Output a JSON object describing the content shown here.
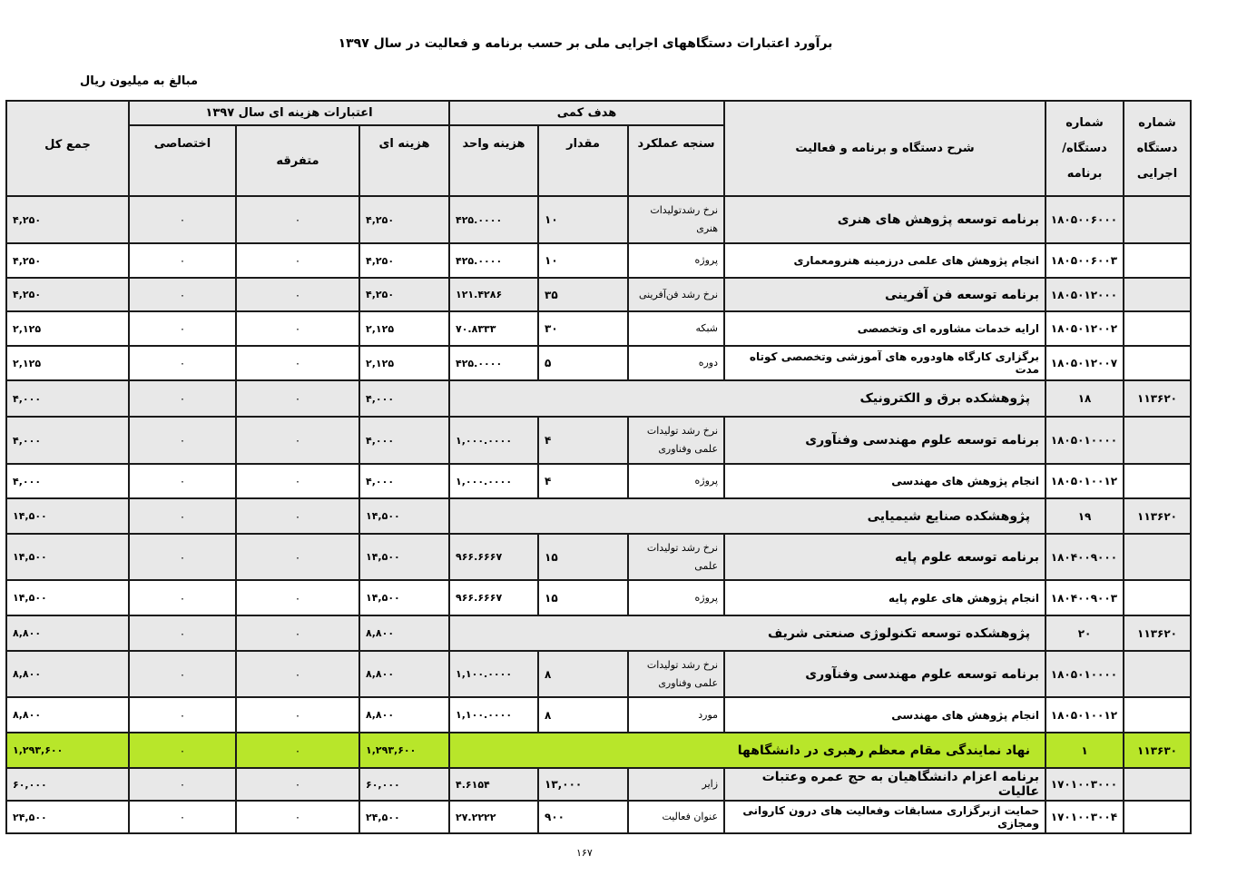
{
  "title": "برآورد اعتبارات دستگاههای اجرایی ملی بر حسب برنامه و فعالیت در سال ۱۳۹۷",
  "units": "مبالغ به میلیون ریال",
  "page_number": "۱۶۷",
  "highlight_color": "#b8e62a",
  "header": {
    "agency_no": "شماره دستگاه اجرایی",
    "program_no": "شماره دستگاه/ برنامه",
    "description": "شرح دستگاه و برنامه و فعالیت",
    "target_group": "هدف کمی",
    "measure": "سنجه عملکرد",
    "quantity": "مقدار",
    "unit_cost": "هزینه واحد",
    "credits_group": "اعتبارات هزینه ای سال ۱۳۹۷",
    "current": "هزینه ای",
    "misc": "متفرقه",
    "special": "اختصاصی",
    "total": "جمع کل"
  },
  "rows": [
    {
      "type": "program",
      "agency": "",
      "code": "۱۸۰۵۰۰۶۰۰۰",
      "desc": "برنامه توسعه پژوهش های هنری",
      "measure": "نرخ رشدتولیدات هنری",
      "qty": "۱۰",
      "unit_cost": "۴۲۵.۰۰۰۰",
      "current": "۴,۲۵۰",
      "misc": "۰",
      "special": "۰",
      "total": "۴,۲۵۰"
    },
    {
      "type": "activity",
      "agency": "",
      "code": "۱۸۰۵۰۰۶۰۰۳",
      "desc": "انجام پژوهش های علمی درزمینه هنرومعماری",
      "measure": "پروژه",
      "qty": "۱۰",
      "unit_cost": "۴۲۵.۰۰۰۰",
      "current": "۴,۲۵۰",
      "misc": "۰",
      "special": "۰",
      "total": "۴,۲۵۰"
    },
    {
      "type": "program",
      "agency": "",
      "code": "۱۸۰۵۰۱۲۰۰۰",
      "desc": "برنامه توسعه فن آفرینی",
      "measure": "نرخ رشد فن‌آفرینی",
      "qty": "۳۵",
      "unit_cost": "۱۲۱.۴۲۸۶",
      "current": "۴,۲۵۰",
      "misc": "۰",
      "special": "۰",
      "total": "۴,۲۵۰"
    },
    {
      "type": "activity",
      "agency": "",
      "code": "۱۸۰۵۰۱۲۰۰۲",
      "desc": "ارایه خدمات مشاوره ای وتخصصی",
      "measure": "شبکه",
      "qty": "۳۰",
      "unit_cost": "۷۰.۸۳۳۳",
      "current": "۲,۱۲۵",
      "misc": "۰",
      "special": "۰",
      "total": "۲,۱۲۵"
    },
    {
      "type": "activity",
      "agency": "",
      "code": "۱۸۰۵۰۱۲۰۰۷",
      "desc": "برگزاری کارگاه هاودوره های آموزشی وتخصصی کوتاه مدت",
      "measure": "دوره",
      "qty": "۵",
      "unit_cost": "۴۲۵.۰۰۰۰",
      "current": "۲,۱۲۵",
      "misc": "۰",
      "special": "۰",
      "total": "۲,۱۲۵"
    },
    {
      "type": "agency",
      "agency": "۱۱۳۶۲۰",
      "code": "۱۸",
      "desc": "پژوهشکده برق و الکترونیک",
      "current": "۴,۰۰۰",
      "misc": "۰",
      "special": "۰",
      "total": "۴,۰۰۰"
    },
    {
      "type": "program",
      "agency": "",
      "code": "۱۸۰۵۰۱۰۰۰۰",
      "desc": "برنامه توسعه علوم مهندسی وفنآوری",
      "measure": "نرخ رشد تولیدات علمی وفناوری",
      "qty": "۴",
      "unit_cost": "۱,۰۰۰.۰۰۰۰",
      "current": "۴,۰۰۰",
      "misc": "۰",
      "special": "۰",
      "total": "۴,۰۰۰"
    },
    {
      "type": "activity",
      "agency": "",
      "code": "۱۸۰۵۰۱۰۰۱۲",
      "desc": "انجام پژوهش های مهندسی",
      "measure": "پروژه",
      "qty": "۴",
      "unit_cost": "۱,۰۰۰.۰۰۰۰",
      "current": "۴,۰۰۰",
      "misc": "۰",
      "special": "۰",
      "total": "۴,۰۰۰"
    },
    {
      "type": "agency",
      "agency": "۱۱۳۶۲۰",
      "code": "۱۹",
      "desc": "پژوهشکده صنایع شیمیایی",
      "current": "۱۴,۵۰۰",
      "misc": "۰",
      "special": "۰",
      "total": "۱۴,۵۰۰"
    },
    {
      "type": "program",
      "agency": "",
      "code": "۱۸۰۴۰۰۹۰۰۰",
      "desc": "برنامه توسعه علوم پایه",
      "measure": "نرخ رشد  تولیدات علمی",
      "qty": "۱۵",
      "unit_cost": "۹۶۶.۶۶۶۷",
      "current": "۱۴,۵۰۰",
      "misc": "۰",
      "special": "۰",
      "total": "۱۴,۵۰۰"
    },
    {
      "type": "activity",
      "agency": "",
      "code": "۱۸۰۴۰۰۹۰۰۳",
      "desc": "انجام پژوهش های علوم پایه",
      "measure": "پروژه",
      "qty": "۱۵",
      "unit_cost": "۹۶۶.۶۶۶۷",
      "current": "۱۴,۵۰۰",
      "misc": "۰",
      "special": "۰",
      "total": "۱۴,۵۰۰"
    },
    {
      "type": "agency",
      "agency": "۱۱۳۶۲۰",
      "code": "۲۰",
      "desc": "پژوهشکده توسعه تکنولوژی صنعتی شریف",
      "current": "۸,۸۰۰",
      "misc": "۰",
      "special": "۰",
      "total": "۸,۸۰۰"
    },
    {
      "type": "program",
      "agency": "",
      "code": "۱۸۰۵۰۱۰۰۰۰",
      "desc": "برنامه توسعه علوم مهندسی وفنآوری",
      "measure": "نرخ رشد تولیدات علمی وفناوری",
      "qty": "۸",
      "unit_cost": "۱,۱۰۰.۰۰۰۰",
      "current": "۸,۸۰۰",
      "misc": "۰",
      "special": "۰",
      "total": "۸,۸۰۰"
    },
    {
      "type": "activity",
      "agency": "",
      "code": "۱۸۰۵۰۱۰۰۱۲",
      "desc": "انجام پژوهش های مهندسی",
      "measure": "مورد",
      "qty": "۸",
      "unit_cost": "۱,۱۰۰.۰۰۰۰",
      "current": "۸,۸۰۰",
      "misc": "۰",
      "special": "۰",
      "total": "۸,۸۰۰"
    },
    {
      "type": "highlight",
      "agency": "۱۱۳۶۳۰",
      "code": "۱",
      "desc": "نهاد نمایندگی مقام معظم رهبری در دانشگاهها",
      "current": "۱,۲۹۳,۶۰۰",
      "misc": "۰",
      "special": "۰",
      "total": "۱,۲۹۳,۶۰۰"
    },
    {
      "type": "program",
      "agency": "",
      "code": "۱۷۰۱۰۰۳۰۰۰",
      "desc": "برنامه اعزام دانشگاهیان به حج عمره وعتبات عالیات",
      "measure": "زایر",
      "qty": "۱۳,۰۰۰",
      "unit_cost": "۴.۶۱۵۴",
      "current": "۶۰,۰۰۰",
      "misc": "۰",
      "special": "۰",
      "total": "۶۰,۰۰۰"
    },
    {
      "type": "activity",
      "agency": "",
      "code": "۱۷۰۱۰۰۳۰۰۴",
      "desc": "حمایت ازبرگزاری مسابقات وفعالیت های درون کاروانی ومجازی",
      "measure": "عنوان فعالیت",
      "qty": "۹۰۰",
      "unit_cost": "۲۷.۲۲۲۲",
      "current": "۲۴,۵۰۰",
      "misc": "۰",
      "special": "۰",
      "total": "۲۴,۵۰۰"
    }
  ]
}
